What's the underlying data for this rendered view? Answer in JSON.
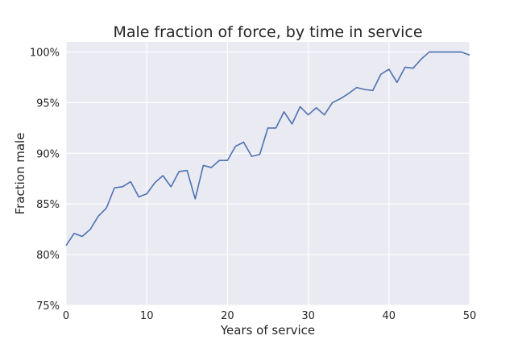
{
  "chart_data": {
    "type": "line",
    "title": "Male fraction of force, by time in service",
    "xlabel": "Years of service",
    "ylabel": "Fraction male",
    "xlim": [
      0,
      50
    ],
    "ylim": [
      0.75,
      1.01
    ],
    "grid": true,
    "x_ticks": [
      0,
      10,
      20,
      30,
      40,
      50
    ],
    "x_tick_labels": [
      "0",
      "10",
      "20",
      "30",
      "40",
      "50"
    ],
    "y_ticks": [
      0.75,
      0.8,
      0.85,
      0.9,
      0.95,
      1.0
    ],
    "y_tick_labels": [
      "75%",
      "80%",
      "85%",
      "90%",
      "95%",
      "100%"
    ],
    "colors": {
      "background": "#eaeaf2",
      "grid": "#ffffff",
      "line": "#4c72b0"
    },
    "series": [
      {
        "x": [
          0,
          1,
          2,
          3,
          4,
          5,
          6,
          7,
          8,
          9,
          10,
          11,
          12,
          13,
          14,
          15,
          16,
          17,
          18,
          19,
          20,
          21,
          22,
          23,
          24,
          25,
          26,
          27,
          28,
          29,
          30,
          31,
          32,
          33,
          34,
          35,
          36,
          37,
          38,
          39,
          40,
          41,
          42,
          43,
          44,
          45,
          46,
          47,
          48,
          49,
          50
        ],
        "values": [
          0.809,
          0.821,
          0.818,
          0.825,
          0.838,
          0.846,
          0.866,
          0.867,
          0.872,
          0.857,
          0.86,
          0.871,
          0.878,
          0.867,
          0.882,
          0.883,
          0.855,
          0.888,
          0.886,
          0.893,
          0.893,
          0.907,
          0.911,
          0.897,
          0.899,
          0.925,
          0.925,
          0.941,
          0.929,
          0.946,
          0.938,
          0.945,
          0.938,
          0.95,
          0.954,
          0.959,
          0.965,
          0.963,
          0.962,
          0.978,
          0.983,
          0.97,
          0.985,
          0.984,
          0.993,
          1.0,
          1.0,
          1.0,
          1.0,
          1.0,
          0.997
        ]
      }
    ]
  }
}
